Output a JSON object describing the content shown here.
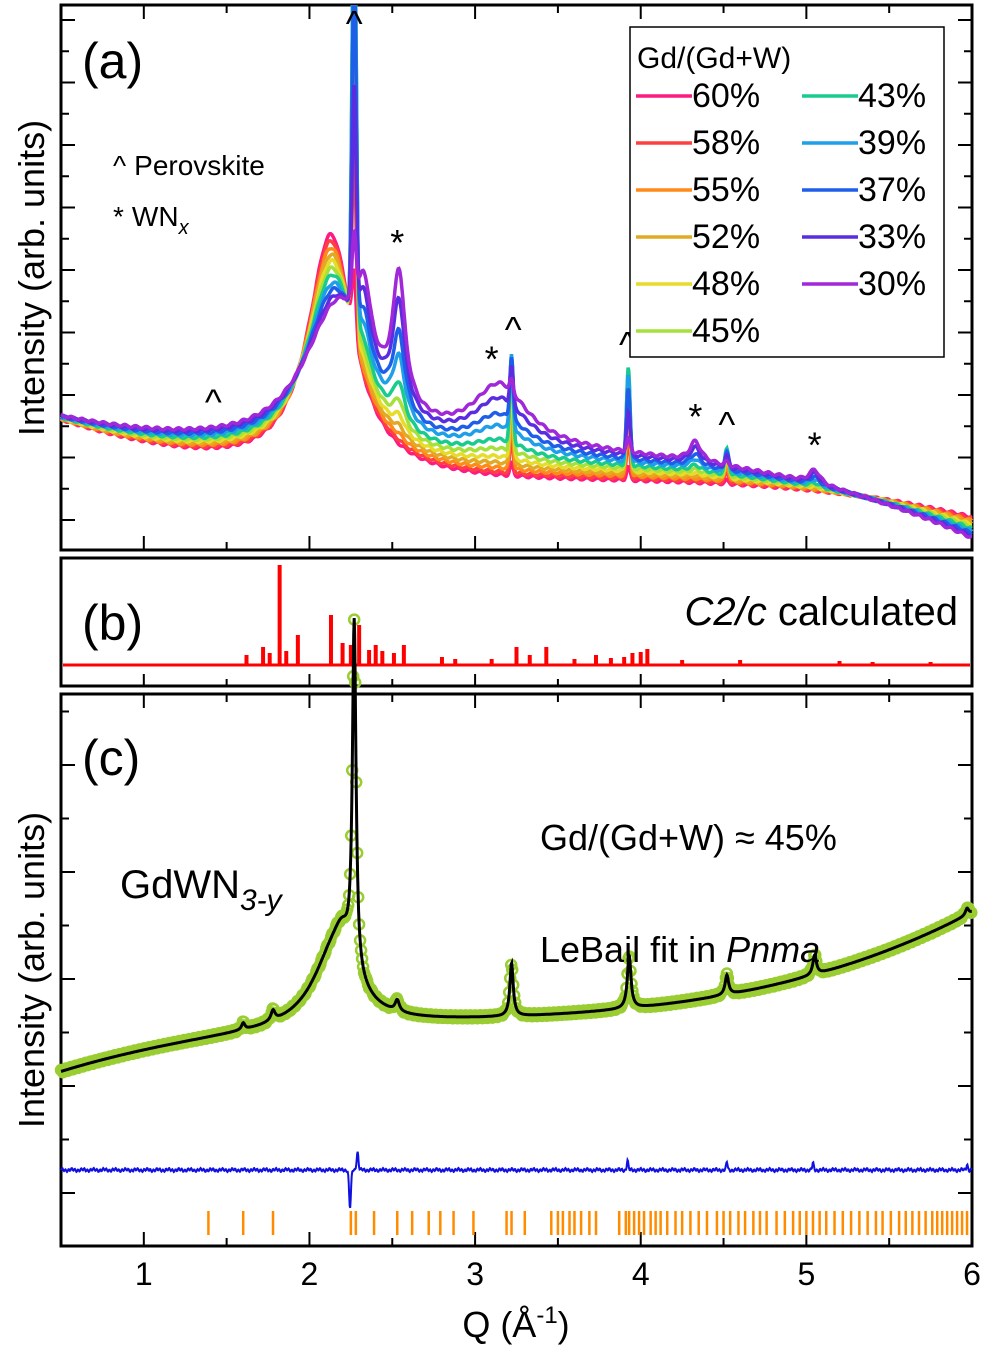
{
  "chart_data": [
    {
      "panel": "a",
      "type": "line",
      "panel_label": "(a)",
      "ylabel": "Intensity (arb. units)",
      "xlim": [
        0.5,
        6
      ],
      "legend_title": "Gd/(Gd+W)",
      "legend_position": "top-right",
      "marker_key": [
        {
          "symbol": "^",
          "label": "Perovskite"
        },
        {
          "symbol": "*",
          "label": "WN",
          "sub": "x"
        }
      ],
      "series": [
        {
          "name": "60%",
          "color": "#ff1a82",
          "k": 0.0
        },
        {
          "name": "58%",
          "color": "#ff4040",
          "k": 0.08
        },
        {
          "name": "55%",
          "color": "#ff8a1a",
          "k": 0.17
        },
        {
          "name": "52%",
          "color": "#e2aa24",
          "k": 0.26
        },
        {
          "name": "48%",
          "color": "#e6dc2a",
          "k": 0.35
        },
        {
          "name": "45%",
          "color": "#a6e03a",
          "k": 0.45
        },
        {
          "name": "43%",
          "color": "#19cc8e",
          "k": 0.55
        },
        {
          "name": "39%",
          "color": "#1f9fe8",
          "k": 0.68
        },
        {
          "name": "37%",
          "color": "#1f5ee8",
          "k": 0.78
        },
        {
          "name": "33%",
          "color": "#5a2ee0",
          "k": 0.9
        },
        {
          "name": "30%",
          "color": "#a028d8",
          "k": 1.0
        }
      ],
      "peak_annotations": [
        {
          "symbol": "^",
          "q": 1.42
        },
        {
          "symbol": "^",
          "q": 2.27
        },
        {
          "symbol": "*",
          "q": 2.53
        },
        {
          "symbol": "*",
          "q": 3.1
        },
        {
          "symbol": "^",
          "q": 3.23
        },
        {
          "symbol": "^",
          "q": 3.92
        },
        {
          "symbol": "*",
          "q": 4.33
        },
        {
          "symbol": "^",
          "q": 4.52
        },
        {
          "symbol": "*",
          "q": 5.05
        }
      ]
    },
    {
      "panel": "b",
      "type": "bar",
      "panel_label": "(b)",
      "annotation_italic": "C2/c",
      "annotation_rest": " calculated",
      "color": "#ff0000",
      "sticks": [
        {
          "q": 1.62,
          "h": 0.1
        },
        {
          "q": 1.72,
          "h": 0.18
        },
        {
          "q": 1.76,
          "h": 0.12
        },
        {
          "q": 1.82,
          "h": 1.0
        },
        {
          "q": 1.86,
          "h": 0.14
        },
        {
          "q": 1.93,
          "h": 0.3
        },
        {
          "q": 2.13,
          "h": 0.5
        },
        {
          "q": 2.2,
          "h": 0.22
        },
        {
          "q": 2.25,
          "h": 0.2
        },
        {
          "q": 2.3,
          "h": 0.4
        },
        {
          "q": 2.36,
          "h": 0.15
        },
        {
          "q": 2.4,
          "h": 0.2
        },
        {
          "q": 2.44,
          "h": 0.14
        },
        {
          "q": 2.51,
          "h": 0.12
        },
        {
          "q": 2.57,
          "h": 0.2
        },
        {
          "q": 2.8,
          "h": 0.08
        },
        {
          "q": 2.88,
          "h": 0.06
        },
        {
          "q": 3.1,
          "h": 0.06
        },
        {
          "q": 3.25,
          "h": 0.18
        },
        {
          "q": 3.33,
          "h": 0.1
        },
        {
          "q": 3.43,
          "h": 0.18
        },
        {
          "q": 3.6,
          "h": 0.06
        },
        {
          "q": 3.73,
          "h": 0.1
        },
        {
          "q": 3.82,
          "h": 0.07
        },
        {
          "q": 3.9,
          "h": 0.08
        },
        {
          "q": 3.95,
          "h": 0.12
        },
        {
          "q": 4.0,
          "h": 0.13
        },
        {
          "q": 4.04,
          "h": 0.16
        },
        {
          "q": 4.25,
          "h": 0.05
        },
        {
          "q": 4.6,
          "h": 0.05
        },
        {
          "q": 5.2,
          "h": 0.04
        },
        {
          "q": 5.4,
          "h": 0.03
        },
        {
          "q": 5.75,
          "h": 0.03
        }
      ]
    },
    {
      "panel": "c",
      "type": "line",
      "panel_label": "(c)",
      "ylabel": "Intensity (arb. units)",
      "xlabel": "Q (Å",
      "xlabel_sup": "-1",
      "xlabel_end": ")",
      "xlim": [
        0.5,
        6
      ],
      "xticks": [
        1,
        2,
        3,
        4,
        5,
        6
      ],
      "compound_label": "GdWN",
      "compound_sub": "3-y",
      "composition_label": "Gd/(Gd+W) ≈ 45%",
      "fit_label": "LeBail fit in ",
      "fit_label_italic": "Pnma",
      "observed_color": "#9acd32",
      "fit_color": "#000000",
      "difference_color": "#1010e0",
      "tick_color": "#ff8c00",
      "peaks": [
        {
          "q": 1.6,
          "a": 0.012,
          "w": 0.012
        },
        {
          "q": 1.78,
          "a": 0.018,
          "w": 0.015
        },
        {
          "q": 2.27,
          "a": 0.62,
          "w": 0.013
        },
        {
          "q": 2.53,
          "a": 0.02,
          "w": 0.015
        },
        {
          "q": 3.22,
          "a": 0.095,
          "w": 0.012
        },
        {
          "q": 3.93,
          "a": 0.095,
          "w": 0.013
        },
        {
          "q": 4.52,
          "a": 0.035,
          "w": 0.013
        },
        {
          "q": 5.05,
          "a": 0.035,
          "w": 0.013
        },
        {
          "q": 5.97,
          "a": 0.012,
          "w": 0.012
        }
      ],
      "reflection_ticks": [
        1.39,
        1.6,
        1.78,
        2.25,
        2.28,
        2.39,
        2.53,
        2.62,
        2.72,
        2.79,
        2.87,
        2.99,
        3.19,
        3.22,
        3.3,
        3.46,
        3.5,
        3.53,
        3.57,
        3.6,
        3.64,
        3.69,
        3.73,
        3.87,
        3.91,
        3.93,
        3.96,
        3.99,
        4.02,
        4.06,
        4.09,
        4.12,
        4.16,
        4.21,
        4.25,
        4.3,
        4.35,
        4.4,
        4.46,
        4.5,
        4.54,
        4.59,
        4.63,
        4.68,
        4.72,
        4.76,
        4.82,
        4.87,
        4.92,
        4.96,
        5.0,
        5.04,
        5.08,
        5.12,
        5.17,
        5.22,
        5.27,
        5.32,
        5.37,
        5.42,
        5.46,
        5.51,
        5.56,
        5.6,
        5.64,
        5.68,
        5.72,
        5.76,
        5.79,
        5.82,
        5.85,
        5.88,
        5.91,
        5.94,
        5.97
      ]
    }
  ]
}
